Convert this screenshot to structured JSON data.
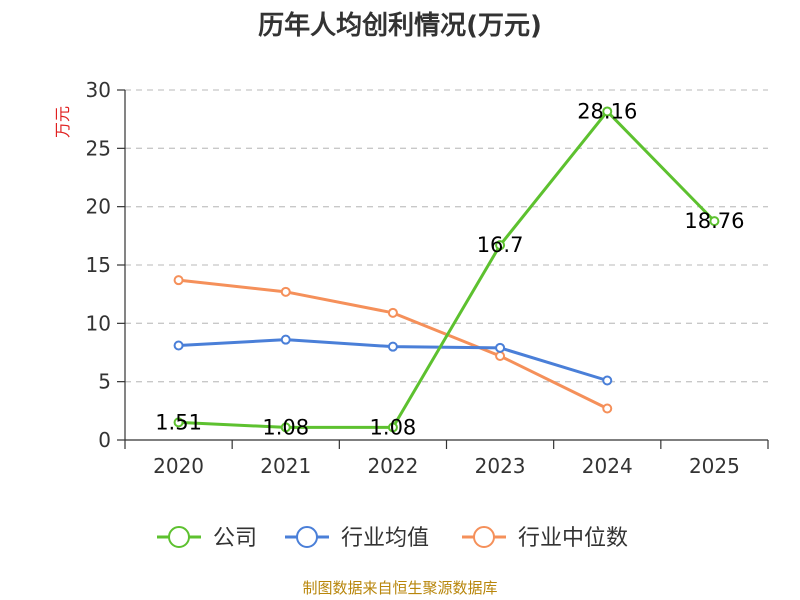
{
  "chart_data": {
    "type": "line",
    "title": "历年人均创利情况(万元)",
    "ylabel": "万元",
    "categories": [
      "2020",
      "2021",
      "2022",
      "2023",
      "2024",
      "2025"
    ],
    "ylim": [
      0,
      30
    ],
    "yticks": [
      0,
      5,
      10,
      15,
      20,
      25,
      30
    ],
    "grid": true,
    "legend_position": "bottom",
    "series": [
      {
        "name": "公司",
        "color": "#5dc12f",
        "values": [
          1.51,
          1.08,
          1.08,
          16.7,
          28.16,
          18.76
        ],
        "labels": [
          "1.51",
          "1.08",
          "1.08",
          "16.7",
          "28.16",
          "18.76"
        ]
      },
      {
        "name": "行业均值",
        "color": "#4a7fd8",
        "values": [
          8.1,
          8.6,
          8.0,
          7.9,
          5.1,
          null
        ]
      },
      {
        "name": "行业中位数",
        "color": "#f5905a",
        "values": [
          13.7,
          12.7,
          10.9,
          7.2,
          2.7,
          null
        ]
      }
    ],
    "source": "制图数据来自恒生聚源数据库"
  }
}
